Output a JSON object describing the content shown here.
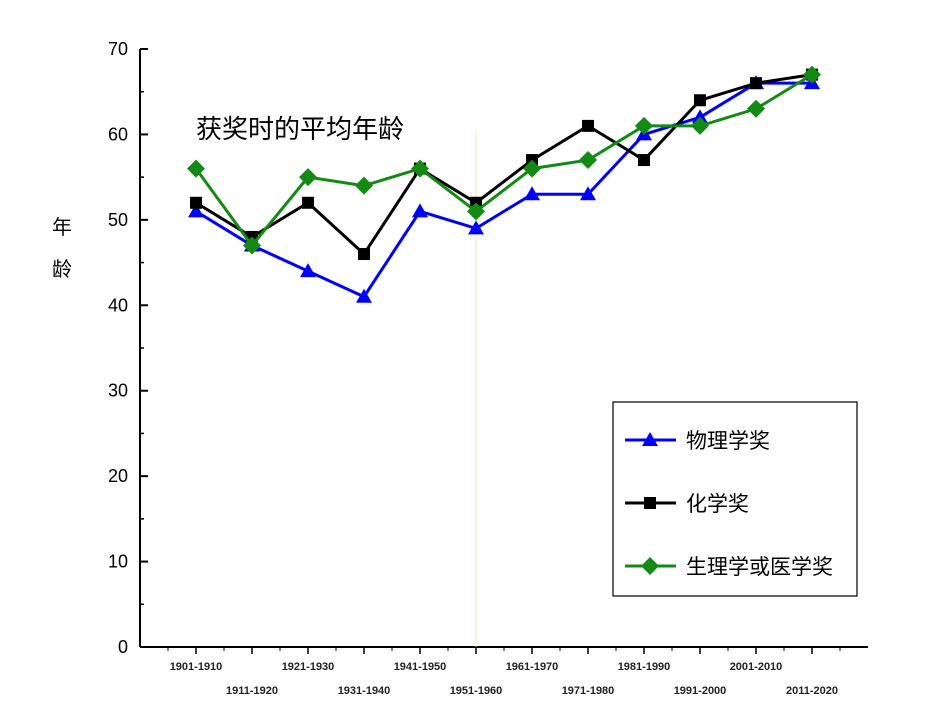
{
  "chart_data": {
    "type": "line",
    "title": "获奖时的平均年龄",
    "xlabel": "",
    "ylabel": "年龄",
    "ylim": [
      0,
      70
    ],
    "yticks": [
      0,
      10,
      20,
      30,
      40,
      50,
      60,
      70
    ],
    "grid": false,
    "legend_position": "bottom-right",
    "categories": [
      "1901-1910",
      "1911-1920",
      "1921-1930",
      "1931-1940",
      "1941-1950",
      "1951-1960",
      "1961-1970",
      "1971-1980",
      "1981-1990",
      "1991-2000",
      "2001-2010",
      "2011-2020"
    ],
    "series": [
      {
        "name": "物理学奖",
        "color": "#0000ff",
        "marker": "triangle",
        "values": [
          51,
          47,
          44,
          41,
          51,
          49,
          53,
          53,
          60,
          62,
          66,
          66
        ]
      },
      {
        "name": "化学奖",
        "color": "#000000",
        "marker": "square",
        "values": [
          52,
          48,
          52,
          46,
          56,
          52,
          57,
          61,
          57,
          64,
          66,
          67
        ]
      },
      {
        "name": "生理学或医学奖",
        "color": "#138a13",
        "marker": "diamond",
        "values": [
          56,
          47,
          55,
          54,
          56,
          51,
          56,
          57,
          61,
          61,
          63,
          67
        ]
      }
    ]
  }
}
